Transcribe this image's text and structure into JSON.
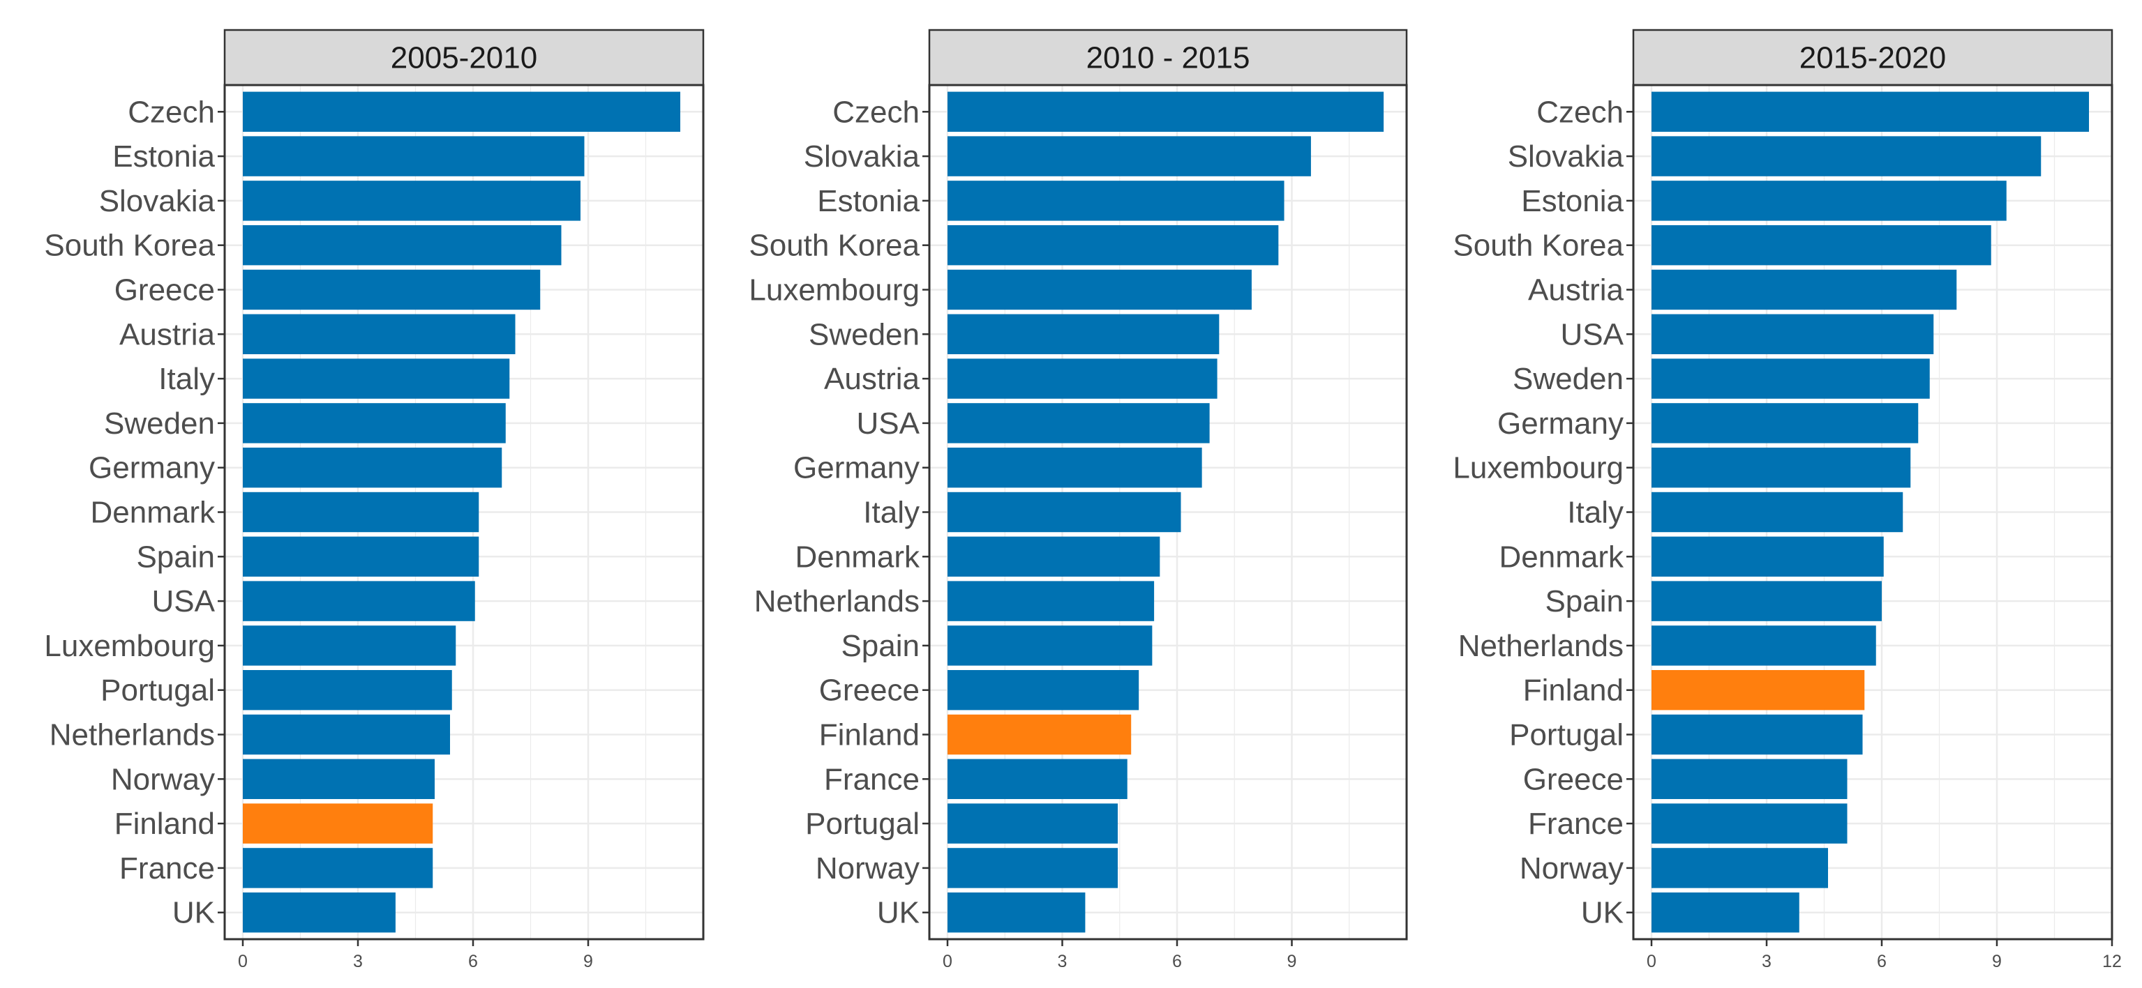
{
  "chart_data": {
    "type": "bar",
    "orientation": "horizontal",
    "layout": "facets",
    "grid": true,
    "highlight_color": "#FF7F0E",
    "bar_color": "#0072B2",
    "panels": [
      {
        "title": "2005-2010",
        "xlim": [
          0,
          12
        ],
        "x_ticks": [
          0,
          3,
          6,
          9
        ],
        "categories": [
          "Czech",
          "Estonia",
          "Slovakia",
          "South Korea",
          "Greece",
          "Austria",
          "Italy",
          "Sweden",
          "Germany",
          "Denmark",
          "Spain",
          "USA",
          "Luxembourg",
          "Portugal",
          "Netherlands",
          "Norway",
          "Finland",
          "France",
          "UK"
        ],
        "values": [
          11.4,
          8.9,
          8.8,
          8.3,
          7.75,
          7.1,
          6.95,
          6.85,
          6.75,
          6.15,
          6.15,
          6.05,
          5.55,
          5.45,
          5.4,
          5.0,
          4.95,
          4.95,
          3.98
        ],
        "highlight": "Finland"
      },
      {
        "title": "2010 - 2015",
        "xlim": [
          0,
          12
        ],
        "x_ticks": [
          0,
          3,
          6,
          9
        ],
        "categories": [
          "Czech",
          "Slovakia",
          "Estonia",
          "South Korea",
          "Luxembourg",
          "Sweden",
          "Austria",
          "USA",
          "Germany",
          "Italy",
          "Denmark",
          "Netherlands",
          "Spain",
          "Greece",
          "Finland",
          "France",
          "Portugal",
          "Norway",
          "UK"
        ],
        "values": [
          11.4,
          9.5,
          8.8,
          8.65,
          7.95,
          7.1,
          7.05,
          6.85,
          6.65,
          6.1,
          5.55,
          5.4,
          5.35,
          5.0,
          4.8,
          4.7,
          4.45,
          4.45,
          3.6
        ],
        "highlight": "Finland"
      },
      {
        "title": "2015-2020",
        "xlim": [
          0,
          12
        ],
        "x_ticks": [
          0,
          3,
          6,
          9,
          12
        ],
        "categories": [
          "Czech",
          "Slovakia",
          "Estonia",
          "South Korea",
          "Austria",
          "USA",
          "Sweden",
          "Germany",
          "Luxembourg",
          "Italy",
          "Denmark",
          "Spain",
          "Netherlands",
          "Finland",
          "Portugal",
          "Greece",
          "France",
          "Norway",
          "UK"
        ],
        "values": [
          11.4,
          10.15,
          9.25,
          8.85,
          7.95,
          7.35,
          7.25,
          6.95,
          6.75,
          6.55,
          6.05,
          6.0,
          5.85,
          5.55,
          5.5,
          5.1,
          5.1,
          4.6,
          3.85
        ],
        "highlight": "Finland"
      }
    ]
  }
}
